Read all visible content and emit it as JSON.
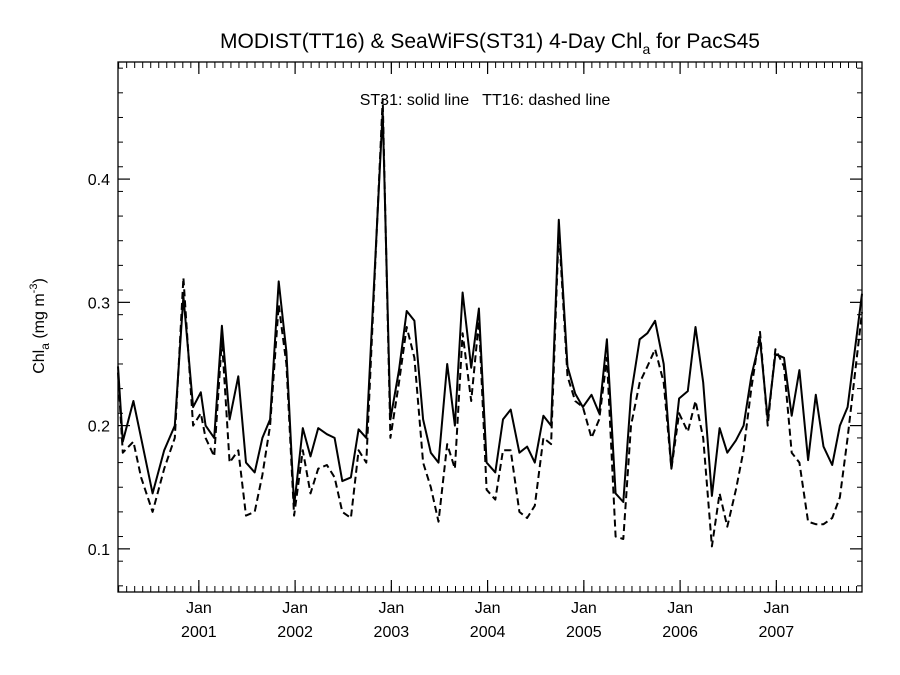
{
  "chart_data": {
    "type": "line",
    "title_main": "MODIST(TT16) & SeaWiFS(ST31) 4-Day Chl",
    "title_sub": "a",
    "title_tail": " for PacS45",
    "ylabel_main": "Chl",
    "ylabel_sub": "a",
    "ylabel_unit": " (mg m",
    "ylabel_sup": "-3",
    "ylabel_close": ")",
    "annotation": "ST31: solid line   TT16: dashed line",
    "xlim": [
      2000.12,
      2007.85
    ],
    "ylim": [
      0.065,
      0.495
    ],
    "y_ticks": [
      0.1,
      0.2,
      0.3,
      0.4
    ],
    "y_tick_labels": [
      "0.1",
      "0.2",
      "0.3",
      "0.4"
    ],
    "x_ticks": [
      {
        "value": 2000.96,
        "month": "Jan",
        "year": "2001"
      },
      {
        "value": 2001.96,
        "month": "Jan",
        "year": "2002"
      },
      {
        "value": 2002.96,
        "month": "Jan",
        "year": "2003"
      },
      {
        "value": 2003.96,
        "month": "Jan",
        "year": "2004"
      },
      {
        "value": 2004.96,
        "month": "Jan",
        "year": "2005"
      },
      {
        "value": 2005.96,
        "month": "Jan",
        "year": "2006"
      },
      {
        "value": 2006.96,
        "month": "Jan",
        "year": "2007"
      }
    ],
    "series": [
      {
        "key": "ST31",
        "style": "solid",
        "points": [
          [
            2000.12,
            0.248
          ],
          [
            2000.17,
            0.187
          ],
          [
            2000.28,
            0.22
          ],
          [
            2000.36,
            0.19
          ],
          [
            2000.48,
            0.145
          ],
          [
            2000.6,
            0.18
          ],
          [
            2000.71,
            0.2
          ],
          [
            2000.8,
            0.305
          ],
          [
            2000.9,
            0.215
          ],
          [
            2000.98,
            0.227
          ],
          [
            2001.03,
            0.2
          ],
          [
            2001.12,
            0.19
          ],
          [
            2001.2,
            0.281
          ],
          [
            2001.28,
            0.205
          ],
          [
            2001.37,
            0.24
          ],
          [
            2001.45,
            0.17
          ],
          [
            2001.54,
            0.162
          ],
          [
            2001.62,
            0.19
          ],
          [
            2001.7,
            0.205
          ],
          [
            2001.79,
            0.317
          ],
          [
            2001.87,
            0.26
          ],
          [
            2001.95,
            0.135
          ],
          [
            2002.04,
            0.198
          ],
          [
            2002.12,
            0.175
          ],
          [
            2002.2,
            0.198
          ],
          [
            2002.29,
            0.193
          ],
          [
            2002.37,
            0.19
          ],
          [
            2002.45,
            0.155
          ],
          [
            2002.54,
            0.158
          ],
          [
            2002.62,
            0.197
          ],
          [
            2002.7,
            0.19
          ],
          [
            2002.87,
            0.455
          ],
          [
            2002.95,
            0.205
          ],
          [
            2003.04,
            0.245
          ],
          [
            2003.12,
            0.293
          ],
          [
            2003.2,
            0.285
          ],
          [
            2003.29,
            0.205
          ],
          [
            2003.37,
            0.178
          ],
          [
            2003.45,
            0.17
          ],
          [
            2003.54,
            0.25
          ],
          [
            2003.62,
            0.2
          ],
          [
            2003.7,
            0.308
          ],
          [
            2003.79,
            0.247
          ],
          [
            2003.87,
            0.295
          ],
          [
            2003.95,
            0.17
          ],
          [
            2004.04,
            0.162
          ],
          [
            2004.12,
            0.205
          ],
          [
            2004.2,
            0.213
          ],
          [
            2004.29,
            0.178
          ],
          [
            2004.37,
            0.183
          ],
          [
            2004.45,
            0.17
          ],
          [
            2004.54,
            0.208
          ],
          [
            2004.62,
            0.2
          ],
          [
            2004.7,
            0.367
          ],
          [
            2004.79,
            0.248
          ],
          [
            2004.87,
            0.226
          ],
          [
            2004.95,
            0.215
          ],
          [
            2005.04,
            0.225
          ],
          [
            2005.12,
            0.21
          ],
          [
            2005.2,
            0.27
          ],
          [
            2005.29,
            0.145
          ],
          [
            2005.37,
            0.138
          ],
          [
            2005.45,
            0.225
          ],
          [
            2005.54,
            0.27
          ],
          [
            2005.62,
            0.275
          ],
          [
            2005.7,
            0.285
          ],
          [
            2005.79,
            0.25
          ],
          [
            2005.87,
            0.165
          ],
          [
            2005.95,
            0.222
          ],
          [
            2006.04,
            0.228
          ],
          [
            2006.12,
            0.28
          ],
          [
            2006.2,
            0.235
          ],
          [
            2006.29,
            0.143
          ],
          [
            2006.37,
            0.198
          ],
          [
            2006.45,
            0.178
          ],
          [
            2006.54,
            0.188
          ],
          [
            2006.62,
            0.2
          ],
          [
            2006.7,
            0.24
          ],
          [
            2006.79,
            0.27
          ],
          [
            2006.87,
            0.205
          ],
          [
            2006.95,
            0.258
          ],
          [
            2007.04,
            0.255
          ],
          [
            2007.12,
            0.208
          ],
          [
            2007.2,
            0.245
          ],
          [
            2007.29,
            0.172
          ],
          [
            2007.37,
            0.225
          ],
          [
            2007.45,
            0.183
          ],
          [
            2007.54,
            0.168
          ],
          [
            2007.62,
            0.2
          ],
          [
            2007.7,
            0.215
          ],
          [
            2007.85,
            0.307
          ]
        ]
      },
      {
        "key": "TT16",
        "style": "dashed",
        "points": [
          [
            2000.12,
            0.243
          ],
          [
            2000.17,
            0.178
          ],
          [
            2000.28,
            0.187
          ],
          [
            2000.36,
            0.158
          ],
          [
            2000.48,
            0.13
          ],
          [
            2000.6,
            0.165
          ],
          [
            2000.71,
            0.19
          ],
          [
            2000.8,
            0.32
          ],
          [
            2000.9,
            0.2
          ],
          [
            2000.98,
            0.21
          ],
          [
            2001.03,
            0.19
          ],
          [
            2001.12,
            0.175
          ],
          [
            2001.2,
            0.27
          ],
          [
            2001.28,
            0.17
          ],
          [
            2001.37,
            0.18
          ],
          [
            2001.45,
            0.127
          ],
          [
            2001.54,
            0.13
          ],
          [
            2001.62,
            0.16
          ],
          [
            2001.7,
            0.2
          ],
          [
            2001.79,
            0.298
          ],
          [
            2001.87,
            0.25
          ],
          [
            2001.95,
            0.127
          ],
          [
            2002.04,
            0.18
          ],
          [
            2002.12,
            0.145
          ],
          [
            2002.2,
            0.165
          ],
          [
            2002.29,
            0.168
          ],
          [
            2002.37,
            0.158
          ],
          [
            2002.45,
            0.13
          ],
          [
            2002.54,
            0.125
          ],
          [
            2002.62,
            0.18
          ],
          [
            2002.7,
            0.17
          ],
          [
            2002.87,
            0.465
          ],
          [
            2002.95,
            0.19
          ],
          [
            2003.04,
            0.235
          ],
          [
            2003.12,
            0.28
          ],
          [
            2003.2,
            0.255
          ],
          [
            2003.29,
            0.17
          ],
          [
            2003.37,
            0.15
          ],
          [
            2003.45,
            0.122
          ],
          [
            2003.54,
            0.185
          ],
          [
            2003.62,
            0.165
          ],
          [
            2003.7,
            0.275
          ],
          [
            2003.79,
            0.22
          ],
          [
            2003.87,
            0.285
          ],
          [
            2003.95,
            0.148
          ],
          [
            2004.04,
            0.14
          ],
          [
            2004.12,
            0.18
          ],
          [
            2004.2,
            0.18
          ],
          [
            2004.29,
            0.13
          ],
          [
            2004.37,
            0.125
          ],
          [
            2004.45,
            0.135
          ],
          [
            2004.54,
            0.19
          ],
          [
            2004.62,
            0.185
          ],
          [
            2004.7,
            0.36
          ],
          [
            2004.79,
            0.24
          ],
          [
            2004.87,
            0.22
          ],
          [
            2004.95,
            0.215
          ],
          [
            2005.04,
            0.19
          ],
          [
            2005.12,
            0.205
          ],
          [
            2005.2,
            0.255
          ],
          [
            2005.29,
            0.11
          ],
          [
            2005.37,
            0.108
          ],
          [
            2005.45,
            0.2
          ],
          [
            2005.54,
            0.235
          ],
          [
            2005.62,
            0.248
          ],
          [
            2005.7,
            0.262
          ],
          [
            2005.79,
            0.235
          ],
          [
            2005.87,
            0.165
          ],
          [
            2005.95,
            0.21
          ],
          [
            2006.04,
            0.195
          ],
          [
            2006.12,
            0.22
          ],
          [
            2006.2,
            0.19
          ],
          [
            2006.29,
            0.102
          ],
          [
            2006.37,
            0.145
          ],
          [
            2006.45,
            0.118
          ],
          [
            2006.54,
            0.148
          ],
          [
            2006.62,
            0.18
          ],
          [
            2006.7,
            0.23
          ],
          [
            2006.79,
            0.276
          ],
          [
            2006.87,
            0.2
          ],
          [
            2006.95,
            0.262
          ],
          [
            2007.04,
            0.248
          ],
          [
            2007.12,
            0.178
          ],
          [
            2007.2,
            0.17
          ],
          [
            2007.29,
            0.122
          ],
          [
            2007.37,
            0.12
          ],
          [
            2007.45,
            0.12
          ],
          [
            2007.54,
            0.125
          ],
          [
            2007.62,
            0.142
          ],
          [
            2007.7,
            0.19
          ],
          [
            2007.85,
            0.292
          ]
        ]
      }
    ],
    "grid": false,
    "legend": "annotation-top-center"
  }
}
